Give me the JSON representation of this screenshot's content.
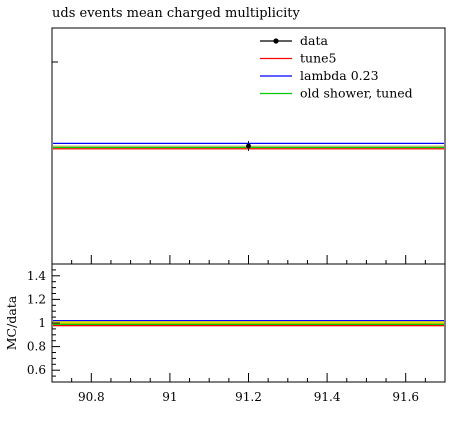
{
  "chart_data": [
    {
      "type": "line",
      "title": "uds events mean charged multiplicity",
      "xlim": [
        90.7,
        91.7
      ],
      "ylim": [
        0,
        1
      ],
      "grid": false,
      "legend_position": "top-right",
      "data": {
        "name": "data",
        "x": 91.2,
        "y": 0.5,
        "yerr": 0.012,
        "color": "#000000"
      },
      "series": [
        {
          "name": "tune5",
          "color": "#ff0000",
          "x": [
            90.7,
            91.7
          ],
          "y": [
            0.488,
            0.488
          ]
        },
        {
          "name": "lambda 0.23",
          "color": "#0000ff",
          "x": [
            90.7,
            91.7
          ],
          "y": [
            0.511,
            0.511
          ]
        },
        {
          "name": "old shower, tuned",
          "color": "#00cc00",
          "x": [
            90.7,
            91.7
          ],
          "y": [
            0.494,
            0.494
          ]
        }
      ],
      "olive_band": {
        "color": "#8b8b00",
        "y": [
          0.485,
          0.502
        ]
      }
    },
    {
      "type": "line",
      "ylabel": "MC/data",
      "xlim": [
        90.7,
        91.7
      ],
      "ylim": [
        0.5,
        1.5
      ],
      "xticks": [
        90.8,
        91,
        91.2,
        91.4,
        91.6
      ],
      "xtick_labels": [
        "90.8",
        "91",
        "91.2",
        "91.4",
        "91.6"
      ],
      "yticks": [
        0.6,
        0.8,
        1,
        1.2,
        1.4
      ],
      "ytick_labels": [
        "0.6",
        "0.8",
        "1",
        "1.2",
        "1.4"
      ],
      "band": {
        "lo": 0.975,
        "hi": 1.025,
        "color": "#ffff00"
      },
      "series": [
        {
          "name": "tune5",
          "color": "#ff0000",
          "y": 0.978
        },
        {
          "name": "lambda 0.23",
          "color": "#0000ff",
          "y": 1.02
        },
        {
          "name": "old shower, tuned",
          "color": "#00cc00",
          "y": 0.988
        }
      ],
      "olive_band": {
        "color": "#8b8b00",
        "y": [
          0.972,
          1.004
        ]
      }
    }
  ]
}
